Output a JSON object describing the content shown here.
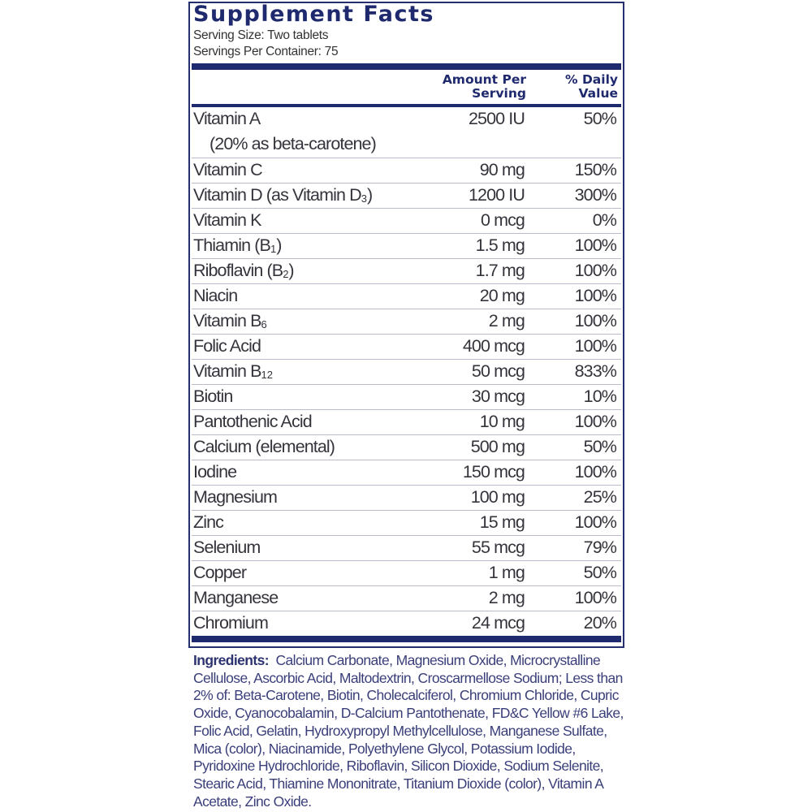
{
  "title": "Supplement Facts",
  "serving_size": "Serving Size: Two tablets",
  "servings_per_container": "Servings Per Container: 75",
  "headers": {
    "amount_line1": "Amount Per",
    "amount_line2": "Serving",
    "dv_line1": "% Daily",
    "dv_line2": "Value"
  },
  "vitamin_a": {
    "name": "Vitamin A",
    "note": "(20% as beta-carotene)",
    "amount": "2500 IU",
    "dv": "50%"
  },
  "rows": [
    {
      "name": "Vitamin C",
      "sub": "",
      "after": "",
      "amount": "90 mg",
      "dv": "150%"
    },
    {
      "name": "Vitamin D (as Vitamin D",
      "sub": "3",
      "after": ")",
      "amount": "1200 IU",
      "dv": "300%"
    },
    {
      "name": "Vitamin K",
      "sub": "",
      "after": "",
      "amount": "0 mcg",
      "dv": "0%"
    },
    {
      "name": "Thiamin (B",
      "sub": "1",
      "after": ")",
      "amount": "1.5 mg",
      "dv": "100%"
    },
    {
      "name": "Riboflavin (B",
      "sub": "2",
      "after": ")",
      "amount": "1.7 mg",
      "dv": "100%"
    },
    {
      "name": "Niacin",
      "sub": "",
      "after": "",
      "amount": "20 mg",
      "dv": "100%"
    },
    {
      "name": "Vitamin B",
      "sub": "6",
      "after": "",
      "amount": "2 mg",
      "dv": "100%"
    },
    {
      "name": "Folic Acid",
      "sub": "",
      "after": "",
      "amount": "400 mcg",
      "dv": "100%"
    },
    {
      "name": "Vitamin B",
      "sub": "12",
      "after": "",
      "amount": "50 mcg",
      "dv": "833%"
    },
    {
      "name": "Biotin",
      "sub": "",
      "after": "",
      "amount": "30 mcg",
      "dv": "10%"
    },
    {
      "name": "Pantothenic Acid",
      "sub": "",
      "after": "",
      "amount": "10 mg",
      "dv": "100%"
    },
    {
      "name": "Calcium (elemental)",
      "sub": "",
      "after": "",
      "amount": "500 mg",
      "dv": "50%"
    },
    {
      "name": "Iodine",
      "sub": "",
      "after": "",
      "amount": "150 mcg",
      "dv": "100%"
    },
    {
      "name": "Magnesium",
      "sub": "",
      "after": "",
      "amount": "100 mg",
      "dv": "25%"
    },
    {
      "name": "Zinc",
      "sub": "",
      "after": "",
      "amount": "15 mg",
      "dv": "100%"
    },
    {
      "name": "Selenium",
      "sub": "",
      "after": "",
      "amount": "55 mcg",
      "dv": "79%"
    },
    {
      "name": "Copper",
      "sub": "",
      "after": "",
      "amount": "1 mg",
      "dv": "50%"
    },
    {
      "name": "Manganese",
      "sub": "",
      "after": "",
      "amount": "2 mg",
      "dv": "100%"
    },
    {
      "name": "Chromium",
      "sub": "",
      "after": "",
      "amount": "24 mcg",
      "dv": "20%"
    }
  ],
  "ingredients": {
    "label": "Ingredients:",
    "text": "Calcium Carbonate, Magnesium Oxide, Microcrystalline Cellulose, Ascorbic Acid, Maltodextrin, Croscarmellose Sodium; Less than 2% of: Beta-Carotene, Biotin, Cholecalciferol, Chromium Chloride, Cupric Oxide, Cyanocobalamin, D-Calcium Pantothenate, FD&C Yellow #6 Lake, Folic Acid, Gelatin, Hydroxypropyl Methylcellulose, Manganese Sulfate, Mica (color), Niacinamide, Polyethylene Glycol, Potassium Iodide, Pyridoxine Hydrochloride, Riboflavin, Silicon Dioxide, Sodium Selenite, Stearic Acid, Thiamine Mononitrate, Titanium Dioxide (color), Vitamin A Acetate, Zinc Oxide."
  },
  "colors": {
    "navy": "#1f2a6e",
    "text": "#34343c"
  }
}
